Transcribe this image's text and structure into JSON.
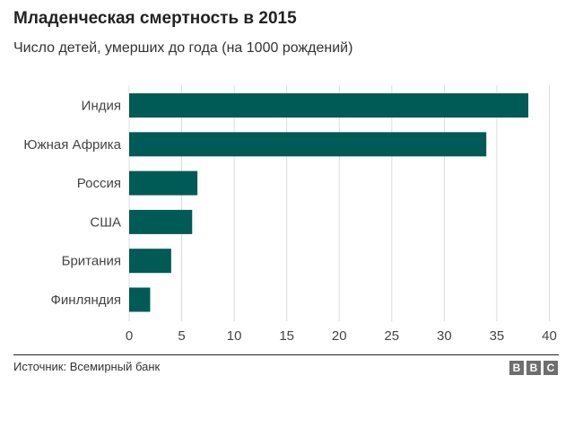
{
  "chart_data": {
    "type": "bar",
    "orientation": "horizontal",
    "title": "Младенческая смертность в 2015",
    "subtitle": "Число детей, умерших до года (на 1000 рождений)",
    "categories": [
      "Индия",
      "Южная Африка",
      "Россия",
      "США",
      "Британия",
      "Финляндия"
    ],
    "values": [
      38,
      34,
      6.5,
      6,
      4,
      2
    ],
    "xlim": [
      0,
      40
    ],
    "xticks": [
      "0",
      "5",
      "10",
      "15",
      "20",
      "25",
      "30",
      "35",
      "40"
    ],
    "grid": true,
    "bar_color": "#005a55",
    "xlabel": "",
    "ylabel": ""
  },
  "footer": {
    "source": "Источник: Всемирный банк",
    "logo_letters": [
      "B",
      "B",
      "C"
    ]
  }
}
